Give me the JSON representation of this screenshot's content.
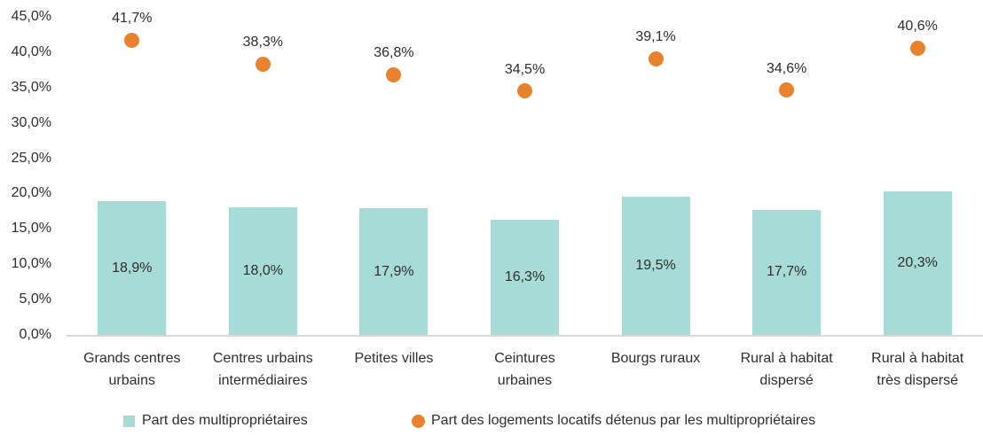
{
  "chart_data": {
    "type": "bar+scatter",
    "title": "",
    "xlabel": "",
    "ylabel": "",
    "ylim": [
      0,
      45
    ],
    "grid": false,
    "legend_position": "bottom",
    "categories": [
      "Grands centres\nurbains",
      "Centres urbains\nintermédiaires",
      "Petites villes",
      "Ceintures\nurbaines",
      "Bourgs ruraux",
      "Rural à habitat\ndispersé",
      "Rural à habitat\ntrès dispersé"
    ],
    "y_ticks": {
      "values": [
        0,
        5,
        10,
        15,
        20,
        25,
        30,
        35,
        40,
        45
      ],
      "labels": [
        "0,0%",
        "5,0%",
        "10,0%",
        "15,0%",
        "20,0%",
        "25,0%",
        "30,0%",
        "35,0%",
        "40,0%",
        "45,0%"
      ]
    },
    "series": [
      {
        "name": "Part des multipropriétaires",
        "type": "bar",
        "color": "#A7DBD8",
        "values": [
          18.9,
          18.0,
          17.9,
          16.3,
          19.5,
          17.7,
          20.3
        ],
        "labels": [
          "18,9%",
          "18,0%",
          "17,9%",
          "16,3%",
          "19,5%",
          "17,7%",
          "20,3%"
        ]
      },
      {
        "name": "Part des logements locatifs détenus par les multipropriétaires",
        "type": "scatter",
        "color": "#E8822E",
        "values": [
          41.7,
          38.3,
          36.8,
          34.5,
          39.1,
          34.6,
          40.6
        ],
        "labels": [
          "41,7%",
          "38,3%",
          "36,8%",
          "34,5%",
          "39,1%",
          "34,6%",
          "40,6%"
        ]
      }
    ],
    "axis_line_color": "#d9d9d9",
    "text_color": "#2d2d2d"
  }
}
